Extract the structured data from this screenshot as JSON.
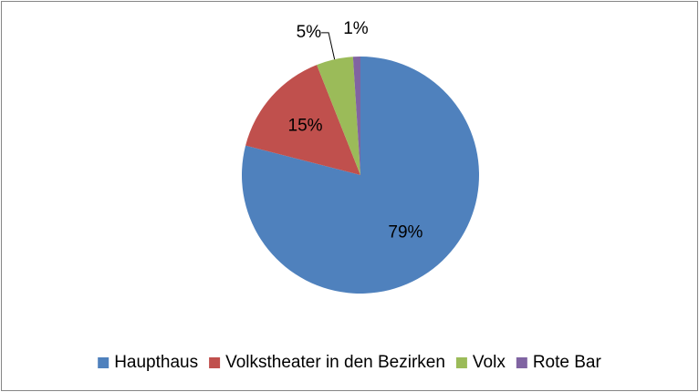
{
  "chart_data": {
    "type": "pie",
    "categories": [
      "Haupthaus",
      "Volkstheater in den Bezirken",
      "Volx",
      "Rote Bar"
    ],
    "values": [
      79,
      15,
      5,
      1
    ],
    "value_labels": [
      "79%",
      "15%",
      "5%",
      "1%"
    ],
    "colors": [
      "#4f81bd",
      "#c0504d",
      "#9bbb59",
      "#8064a2"
    ],
    "legend": "bottom"
  }
}
